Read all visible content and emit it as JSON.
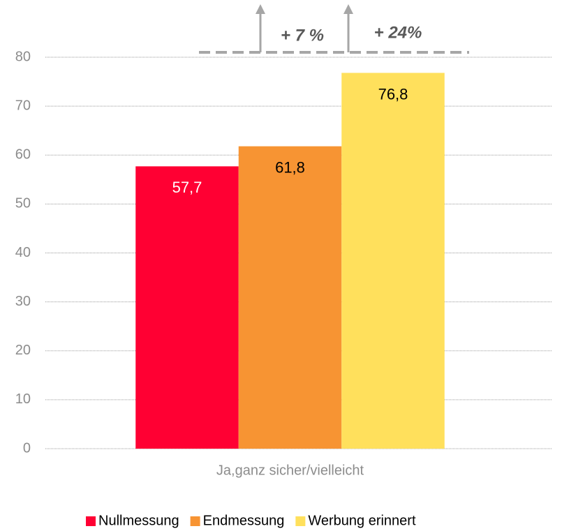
{
  "chart_data": {
    "type": "bar",
    "categories": [
      "Ja,ganz sicher/vielleicht"
    ],
    "series": [
      {
        "name": "Nullmessung",
        "color": "#ff0033",
        "values": [
          57.7
        ],
        "value_labels": [
          "57,7"
        ]
      },
      {
        "name": "Endmessung",
        "color": "#f79433",
        "values": [
          61.8
        ],
        "value_labels": [
          "61,8"
        ]
      },
      {
        "name": "Werbung erinnert",
        "color": "#ffe05c",
        "values": [
          76.8
        ],
        "value_labels": [
          "76,8"
        ]
      }
    ],
    "ylim": [
      0,
      80
    ],
    "yticks": [
      0,
      10,
      20,
      30,
      40,
      50,
      60,
      70,
      80
    ],
    "grid": true,
    "legend": "bottom",
    "annotations": [
      "+ 7 %",
      "+ 24%"
    ]
  }
}
